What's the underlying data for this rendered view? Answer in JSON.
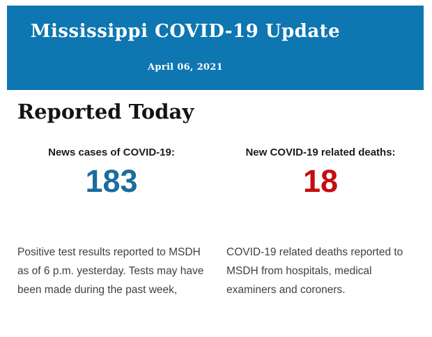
{
  "header": {
    "title": "Mississippi COVID-19 Update",
    "date": "April 06, 2021",
    "background_color": "#0e76b1",
    "text_color": "#ffffff"
  },
  "section": {
    "heading": "Reported Today"
  },
  "stats": [
    {
      "label": "News cases of COVID-19:",
      "value": "183",
      "value_color": "#1b6c9f",
      "description": "Positive test results reported to MSDH as of 6 p.m. yesterday. Tests may have been made during the past week,"
    },
    {
      "label": "New COVID-19 related deaths:",
      "value": "18",
      "value_color": "#c50d11",
      "description": "COVID-19 related deaths reported to MSDH from hospitals, medical examiners and coroners."
    }
  ]
}
